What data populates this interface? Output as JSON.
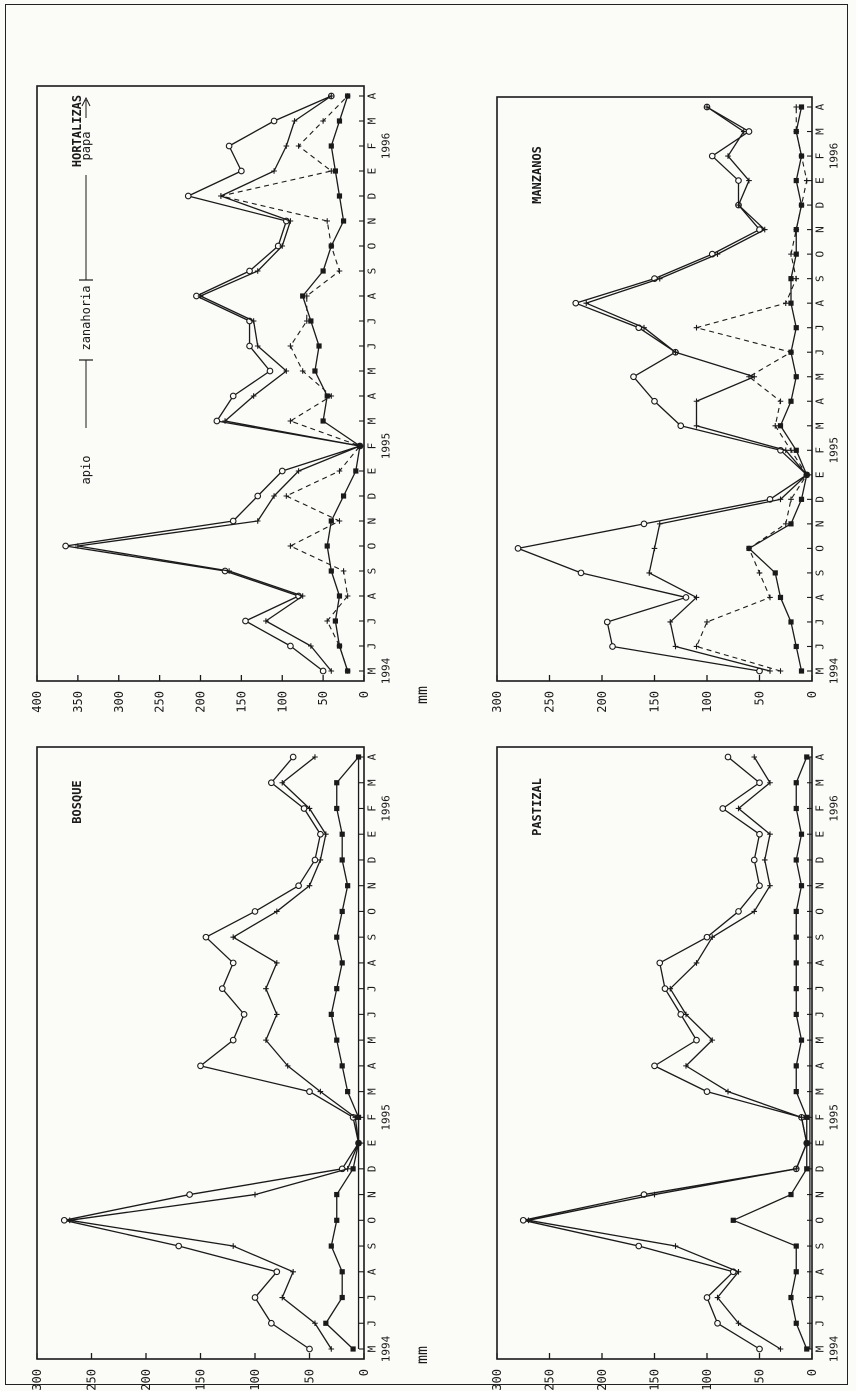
{
  "style": {
    "ink": "#1a1a1a",
    "paper": "#fbfbf8"
  },
  "chart_data": [
    {
      "type": "line",
      "title": "BOSQUE",
      "ylabel": "mm",
      "ylim": [
        0,
        300
      ],
      "yticks": [
        0,
        50,
        100,
        150,
        200,
        250,
        300
      ],
      "categories": [
        "M",
        "J",
        "J",
        "A",
        "S",
        "O",
        "N",
        "D",
        "E",
        "F",
        "M",
        "A",
        "M",
        "J",
        "J",
        "A",
        "S",
        "O",
        "N",
        "D",
        "E",
        "F",
        "M",
        "A"
      ],
      "year_labels": [
        {
          "label": "1994",
          "at": 0
        },
        {
          "label": "1995",
          "at": 9
        },
        {
          "label": "1996",
          "at": 21
        }
      ],
      "series": [
        {
          "marker": "circle",
          "dash": "solid",
          "values": [
            50,
            85,
            100,
            80,
            170,
            275,
            160,
            20,
            5,
            10,
            50,
            150,
            120,
            110,
            130,
            120,
            145,
            100,
            60,
            45,
            40,
            55,
            85,
            65
          ]
        },
        {
          "marker": "cross",
          "dash": "solid",
          "values": [
            30,
            45,
            75,
            65,
            120,
            270,
            100,
            15,
            5,
            8,
            40,
            70,
            90,
            80,
            90,
            80,
            120,
            80,
            50,
            40,
            35,
            50,
            75,
            45
          ]
        },
        {
          "marker": "square",
          "dash": "solid",
          "values": [
            10,
            35,
            20,
            20,
            30,
            25,
            25,
            10,
            5,
            5,
            15,
            20,
            25,
            30,
            25,
            20,
            25,
            20,
            15,
            20,
            20,
            25,
            25,
            5
          ]
        },
        {
          "marker": "none",
          "dash": "solid",
          "values": [
            5,
            5,
            5,
            5,
            5,
            5,
            5,
            5,
            5,
            5,
            5,
            5,
            5,
            5,
            5,
            5,
            5,
            5,
            5,
            5,
            5,
            5,
            5,
            5
          ]
        }
      ]
    },
    {
      "type": "line",
      "title": "HORTALIZAS",
      "ylabel": "mm",
      "ylim": [
        0,
        400
      ],
      "yticks": [
        0,
        50,
        100,
        150,
        200,
        250,
        300,
        350,
        400
      ],
      "categories": [
        "M",
        "J",
        "J",
        "A",
        "S",
        "O",
        "N",
        "D",
        "E",
        "F",
        "M",
        "A",
        "M",
        "J",
        "J",
        "A",
        "S",
        "O",
        "N",
        "D",
        "E",
        "F",
        "M",
        "A"
      ],
      "year_labels": [
        {
          "label": "1994",
          "at": 0
        },
        {
          "label": "1995",
          "at": 9
        },
        {
          "label": "1996",
          "at": 21
        }
      ],
      "annotations": [
        "apio",
        "zanahoria",
        "papa"
      ],
      "series": [
        {
          "marker": "circle",
          "dash": "solid",
          "values": [
            50,
            90,
            145,
            80,
            170,
            365,
            160,
            130,
            100,
            5,
            180,
            160,
            115,
            140,
            140,
            205,
            140,
            105,
            95,
            215,
            150,
            165,
            110,
            40
          ]
        },
        {
          "marker": "cross",
          "dash": "solid",
          "values": [
            40,
            65,
            120,
            75,
            165,
            350,
            130,
            110,
            80,
            5,
            170,
            135,
            95,
            130,
            135,
            200,
            130,
            100,
            90,
            175,
            110,
            95,
            85,
            40
          ]
        },
        {
          "marker": "cross",
          "dash": "dashed",
          "values": [
            20,
            30,
            45,
            20,
            25,
            90,
            30,
            95,
            30,
            5,
            90,
            40,
            75,
            90,
            70,
            70,
            30,
            40,
            45,
            175,
            40,
            80,
            50,
            20
          ]
        },
        {
          "marker": "square",
          "dash": "solid",
          "values": [
            20,
            30,
            35,
            30,
            40,
            45,
            40,
            25,
            10,
            5,
            50,
            45,
            60,
            55,
            65,
            75,
            50,
            40,
            25,
            30,
            35,
            40,
            30,
            20
          ]
        }
      ]
    },
    {
      "type": "line",
      "title": "PASTIZAL",
      "ylabel": "mm",
      "ylim": [
        0,
        300
      ],
      "yticks": [
        0,
        50,
        100,
        150,
        200,
        250,
        300
      ],
      "categories": [
        "M",
        "J",
        "J",
        "A",
        "S",
        "O",
        "N",
        "D",
        "E",
        "F",
        "M",
        "A",
        "M",
        "J",
        "J",
        "A",
        "S",
        "O",
        "N",
        "D",
        "E",
        "F",
        "M",
        "A"
      ],
      "year_labels": [
        {
          "label": "1994",
          "at": 0
        },
        {
          "label": "1995",
          "at": 9
        },
        {
          "label": "1996",
          "at": 21
        }
      ],
      "series": [
        {
          "marker": "circle",
          "dash": "solid",
          "values": [
            50,
            90,
            100,
            75,
            165,
            275,
            160,
            15,
            5,
            10,
            100,
            150,
            110,
            125,
            140,
            145,
            100,
            70,
            50,
            55,
            50,
            85,
            50,
            80
          ]
        },
        {
          "marker": "cross",
          "dash": "solid",
          "values": [
            30,
            70,
            90,
            70,
            130,
            270,
            150,
            15,
            5,
            10,
            80,
            120,
            95,
            120,
            135,
            110,
            95,
            55,
            40,
            45,
            40,
            70,
            40,
            55
          ]
        },
        {
          "marker": "square",
          "dash": "solid",
          "values": [
            5,
            15,
            20,
            15,
            15,
            75,
            20,
            5,
            5,
            5,
            15,
            15,
            10,
            15,
            15,
            15,
            15,
            15,
            10,
            15,
            10,
            15,
            15,
            5
          ]
        },
        {
          "marker": "none",
          "dash": "solid",
          "values": [
            2,
            2,
            2,
            2,
            2,
            2,
            2,
            2,
            2,
            2,
            2,
            2,
            2,
            2,
            2,
            2,
            2,
            2,
            2,
            2,
            2,
            2,
            2,
            2
          ]
        }
      ]
    },
    {
      "type": "line",
      "title": "MANZANOS",
      "ylabel": "mm",
      "ylim": [
        0,
        300
      ],
      "yticks": [
        0,
        50,
        100,
        150,
        200,
        250,
        300
      ],
      "categories": [
        "M",
        "J",
        "J",
        "A",
        "S",
        "O",
        "N",
        "D",
        "E",
        "F",
        "M",
        "A",
        "M",
        "J",
        "J",
        "A",
        "S",
        "O",
        "N",
        "D",
        "E",
        "F",
        "M",
        "A"
      ],
      "year_labels": [
        {
          "label": "1994",
          "at": 0
        },
        {
          "label": "1995",
          "at": 9
        },
        {
          "label": "1996",
          "at": 21
        }
      ],
      "series": [
        {
          "marker": "circle",
          "dash": "solid",
          "values": [
            50,
            190,
            195,
            120,
            220,
            280,
            160,
            40,
            5,
            30,
            125,
            150,
            170,
            130,
            165,
            225,
            150,
            95,
            50,
            70,
            70,
            95,
            60,
            100
          ]
        },
        {
          "marker": "cross",
          "dash": "solid",
          "values": [
            40,
            130,
            135,
            110,
            155,
            150,
            145,
            30,
            5,
            25,
            110,
            110,
            55,
            130,
            160,
            215,
            145,
            90,
            45,
            70,
            60,
            80,
            65,
            100
          ]
        },
        {
          "marker": "cross",
          "dash": "dashed",
          "values": [
            30,
            110,
            100,
            40,
            50,
            60,
            25,
            20,
            5,
            20,
            35,
            30,
            60,
            20,
            110,
            25,
            15,
            20,
            15,
            10,
            5,
            10,
            15,
            15
          ]
        },
        {
          "marker": "square",
          "dash": "solid",
          "values": [
            10,
            15,
            20,
            30,
            35,
            60,
            20,
            10,
            5,
            15,
            30,
            20,
            15,
            20,
            15,
            20,
            20,
            15,
            15,
            10,
            15,
            10,
            15,
            10
          ]
        }
      ]
    }
  ]
}
